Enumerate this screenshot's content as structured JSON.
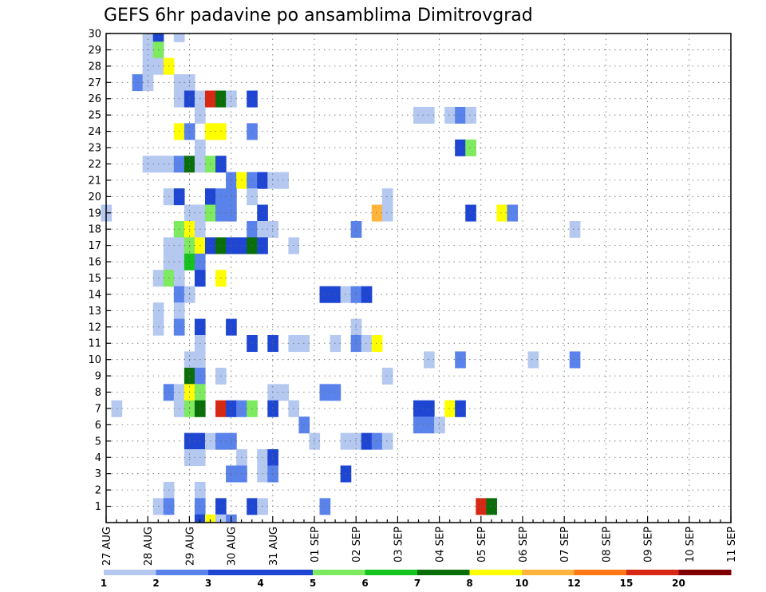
{
  "chart_data": {
    "type": "heatmap",
    "title": "GEFS 6hr padavine po ansamblima Dimitrovgrad",
    "xlabel": "",
    "ylabel": "",
    "x_ticks": [
      "27 AUG",
      "28 AUG",
      "29 AUG",
      "30 AUG",
      "31 AUG",
      "01 SEP",
      "02 SEP",
      "03 SEP",
      "04 SEP",
      "05 SEP",
      "06 SEP",
      "07 SEP",
      "08 SEP",
      "09 SEP",
      "10 SEP",
      "11 SEP"
    ],
    "xlim_days": [
      0,
      15
    ],
    "y_ticks": [
      1,
      2,
      3,
      4,
      5,
      6,
      7,
      8,
      9,
      10,
      11,
      12,
      13,
      14,
      15,
      16,
      17,
      18,
      19,
      20,
      21,
      22,
      23,
      24,
      25,
      26,
      27,
      28,
      29,
      30
    ],
    "ylim": [
      0,
      30
    ],
    "grid": true,
    "legend": {
      "placement": "bottom",
      "labels": [
        "1",
        "2",
        "3",
        "4",
        "5",
        "6",
        "7",
        "8",
        "10",
        "12",
        "15",
        "20"
      ],
      "colors": [
        "#b4c8f0",
        "#5a82eb",
        "#1e46d2",
        "#1e46d2",
        "#7dea5f",
        "#14c31e",
        "#0a6e0a",
        "#ffff00",
        "#ffb43c",
        "#ff7814",
        "#d72814",
        "#800000"
      ]
    },
    "cells": [
      [
        3,
        30,
        1
      ],
      [
        4,
        30,
        4
      ],
      [
        6,
        30,
        1
      ],
      [
        3,
        29,
        1
      ],
      [
        4,
        29,
        5
      ],
      [
        3,
        28,
        1
      ],
      [
        4,
        28,
        1
      ],
      [
        5,
        28,
        9
      ],
      [
        2,
        27,
        2
      ],
      [
        3,
        27,
        1
      ],
      [
        6,
        27,
        1
      ],
      [
        7,
        27,
        1
      ],
      [
        6,
        26,
        1
      ],
      [
        7,
        26,
        3
      ],
      [
        8,
        26,
        1
      ],
      [
        9,
        26,
        15
      ],
      [
        10,
        26,
        7
      ],
      [
        11,
        26,
        1
      ],
      [
        13,
        26,
        4
      ],
      [
        8,
        25,
        1
      ],
      [
        29,
        25,
        1
      ],
      [
        30,
        25,
        1
      ],
      [
        32,
        25,
        1
      ],
      [
        33,
        25,
        2
      ],
      [
        34,
        25,
        1
      ],
      [
        6,
        24,
        9
      ],
      [
        7,
        24,
        2
      ],
      [
        9,
        24,
        9
      ],
      [
        10,
        24,
        8
      ],
      [
        13,
        24,
        2
      ],
      [
        8,
        23,
        1
      ],
      [
        33,
        23,
        4
      ],
      [
        34,
        23,
        5
      ],
      [
        3,
        22,
        1
      ],
      [
        4,
        22,
        1
      ],
      [
        5,
        22,
        1
      ],
      [
        6,
        22,
        2
      ],
      [
        7,
        22,
        7
      ],
      [
        8,
        22,
        1
      ],
      [
        9,
        22,
        5
      ],
      [
        10,
        22,
        4
      ],
      [
        11,
        21,
        2
      ],
      [
        12,
        21,
        8
      ],
      [
        13,
        21,
        2
      ],
      [
        14,
        21,
        4
      ],
      [
        15,
        21,
        1
      ],
      [
        16,
        21,
        1
      ],
      [
        5,
        20,
        1
      ],
      [
        6,
        20,
        4
      ],
      [
        9,
        20,
        4
      ],
      [
        10,
        20,
        2
      ],
      [
        11,
        20,
        2
      ],
      [
        13,
        20,
        1
      ],
      [
        26,
        20,
        1
      ],
      [
        -1,
        19,
        1
      ],
      [
        7,
        19,
        1
      ],
      [
        8,
        19,
        1
      ],
      [
        9,
        19,
        5
      ],
      [
        10,
        19,
        2
      ],
      [
        11,
        19,
        2
      ],
      [
        14,
        19,
        3
      ],
      [
        25,
        19,
        10
      ],
      [
        26,
        19,
        1
      ],
      [
        34,
        19,
        3
      ],
      [
        37,
        19,
        8
      ],
      [
        38,
        19,
        2
      ],
      [
        6,
        18,
        5
      ],
      [
        7,
        18,
        9
      ],
      [
        8,
        18,
        1
      ],
      [
        13,
        18,
        2
      ],
      [
        14,
        18,
        1
      ],
      [
        15,
        18,
        1
      ],
      [
        23,
        18,
        2
      ],
      [
        44,
        18,
        1
      ],
      [
        5,
        17,
        1
      ],
      [
        6,
        17,
        1
      ],
      [
        7,
        17,
        5
      ],
      [
        8,
        17,
        9
      ],
      [
        9,
        17,
        4
      ],
      [
        10,
        17,
        7
      ],
      [
        11,
        17,
        3
      ],
      [
        12,
        17,
        4
      ],
      [
        13,
        17,
        7
      ],
      [
        14,
        17,
        3
      ],
      [
        17,
        17,
        1
      ],
      [
        5,
        16,
        1
      ],
      [
        6,
        16,
        1
      ],
      [
        7,
        16,
        6
      ],
      [
        8,
        16,
        2
      ],
      [
        4,
        15,
        1
      ],
      [
        5,
        15,
        5
      ],
      [
        6,
        15,
        1
      ],
      [
        8,
        15,
        4
      ],
      [
        10,
        15,
        8
      ],
      [
        6,
        14,
        2
      ],
      [
        7,
        14,
        1
      ],
      [
        20,
        14,
        4
      ],
      [
        21,
        14,
        3
      ],
      [
        22,
        14,
        1
      ],
      [
        23,
        14,
        2
      ],
      [
        24,
        14,
        3
      ],
      [
        4,
        13,
        1
      ],
      [
        6,
        13,
        1
      ],
      [
        4,
        12,
        1
      ],
      [
        6,
        12,
        2
      ],
      [
        8,
        12,
        4
      ],
      [
        11,
        12,
        4
      ],
      [
        23,
        12,
        1
      ],
      [
        8,
        11,
        1
      ],
      [
        13,
        11,
        3
      ],
      [
        15,
        11,
        3
      ],
      [
        17,
        11,
        1
      ],
      [
        18,
        11,
        1
      ],
      [
        21,
        11,
        1
      ],
      [
        23,
        11,
        2
      ],
      [
        24,
        11,
        1
      ],
      [
        25,
        11,
        8
      ],
      [
        7,
        10,
        1
      ],
      [
        8,
        10,
        1
      ],
      [
        30,
        10,
        1
      ],
      [
        33,
        10,
        2
      ],
      [
        40,
        10,
        1
      ],
      [
        44,
        10,
        2
      ],
      [
        7,
        9,
        7
      ],
      [
        8,
        9,
        2
      ],
      [
        10,
        9,
        1
      ],
      [
        26,
        9,
        1
      ],
      [
        5,
        8,
        2
      ],
      [
        6,
        8,
        1
      ],
      [
        7,
        8,
        8
      ],
      [
        8,
        8,
        5
      ],
      [
        15,
        8,
        1
      ],
      [
        16,
        8,
        1
      ],
      [
        20,
        8,
        2
      ],
      [
        21,
        8,
        2
      ],
      [
        0,
        7,
        1
      ],
      [
        6,
        7,
        1
      ],
      [
        7,
        7,
        5
      ],
      [
        8,
        7,
        7
      ],
      [
        10,
        7,
        15
      ],
      [
        11,
        7,
        4
      ],
      [
        12,
        7,
        2
      ],
      [
        13,
        7,
        5
      ],
      [
        15,
        7,
        3
      ],
      [
        17,
        7,
        1
      ],
      [
        29,
        7,
        3
      ],
      [
        30,
        7,
        4
      ],
      [
        32,
        7,
        8
      ],
      [
        33,
        7,
        4
      ],
      [
        18,
        6,
        2
      ],
      [
        29,
        6,
        2
      ],
      [
        30,
        6,
        2
      ],
      [
        31,
        6,
        1
      ],
      [
        7,
        5,
        4
      ],
      [
        8,
        5,
        4
      ],
      [
        9,
        5,
        1
      ],
      [
        10,
        5,
        2
      ],
      [
        11,
        5,
        2
      ],
      [
        19,
        5,
        1
      ],
      [
        22,
        5,
        1
      ],
      [
        23,
        5,
        1
      ],
      [
        24,
        5,
        4
      ],
      [
        25,
        5,
        2
      ],
      [
        26,
        5,
        1
      ],
      [
        7,
        4,
        1
      ],
      [
        8,
        4,
        1
      ],
      [
        12,
        4,
        1
      ],
      [
        14,
        4,
        1
      ],
      [
        15,
        4,
        4
      ],
      [
        11,
        3,
        2
      ],
      [
        12,
        3,
        2
      ],
      [
        14,
        3,
        1
      ],
      [
        15,
        3,
        2
      ],
      [
        22,
        3,
        3
      ],
      [
        5,
        2,
        1
      ],
      [
        8,
        2,
        1
      ],
      [
        4,
        1,
        1
      ],
      [
        5,
        1,
        2
      ],
      [
        8,
        1,
        2
      ],
      [
        10,
        1,
        3
      ],
      [
        13,
        1,
        3
      ],
      [
        14,
        1,
        1
      ],
      [
        20,
        1,
        2
      ],
      [
        35,
        1,
        15
      ],
      [
        36,
        1,
        7
      ],
      [
        8,
        0,
        3
      ],
      [
        9,
        0,
        8
      ],
      [
        10,
        0,
        1
      ],
      [
        11,
        0,
        2
      ]
    ]
  }
}
